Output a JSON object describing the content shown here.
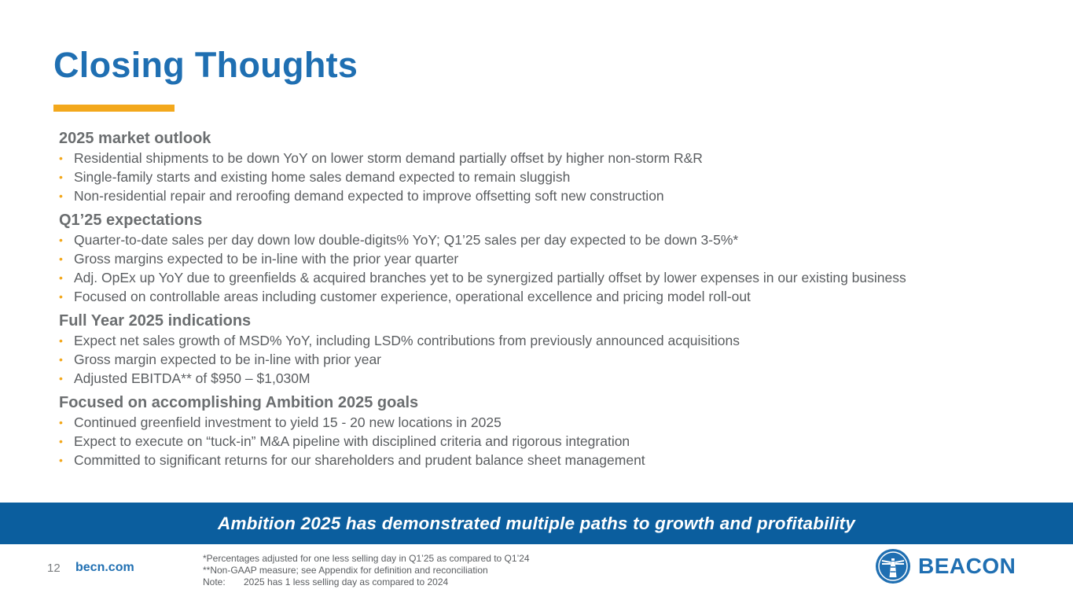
{
  "title": "Closing Thoughts",
  "sections": [
    {
      "heading": "2025 market outlook",
      "bullets": [
        "Residential shipments to be down YoY on lower storm demand partially offset by higher non-storm R&R",
        "Single-family starts and existing home sales demand expected to remain sluggish",
        "Non-residential repair and reroofing demand expected to improve offsetting soft new construction"
      ]
    },
    {
      "heading": "Q1’25 expectations",
      "bullets": [
        "Quarter-to-date sales per day down low double-digits% YoY; Q1’25 sales per day expected to be down 3-5%*",
        "Gross margins expected to be in-line with the prior year quarter",
        "Adj. OpEx up YoY due to greenfields & acquired branches yet to be synergized partially offset by lower expenses in our existing business",
        "Focused on controllable areas including customer experience, operational excellence and pricing model roll-out"
      ]
    },
    {
      "heading": "Full Year 2025 indications",
      "bullets": [
        "Expect net sales growth of MSD% YoY, including LSD% contributions from previously announced acquisitions",
        "Gross margin expected to be in-line with prior year",
        "Adjusted EBITDA** of $950 – $1,030M"
      ]
    },
    {
      "heading": "Focused on accomplishing Ambition 2025 goals",
      "bullets": [
        "Continued greenfield investment to yield 15 - 20 new locations in 2025",
        "Expect to execute on “tuck-in” M&A pipeline with disciplined criteria and rigorous integration",
        "Committed to significant returns for our shareholders and prudent balance sheet management"
      ]
    }
  ],
  "banner": "Ambition 2025 has demonstrated multiple paths to growth and profitability",
  "footer": {
    "page_number": "12",
    "site": "becn.com",
    "footnote_1": "*Percentages adjusted for one less selling day in Q1’25 as compared to Q1’24",
    "footnote_2": "**Non-GAAP measure; see Appendix for definition and reconciliation",
    "note_label": "Note:",
    "note_text": "2025 has 1 less selling day as compared to 2024"
  },
  "logo": {
    "wordmark": "BEACON",
    "icon": "beacon-lighthouse-icon"
  },
  "colors": {
    "brand_blue": "#1f6fb2",
    "accent_orange": "#f3a81c",
    "banner_blue": "#0b5e9e"
  }
}
